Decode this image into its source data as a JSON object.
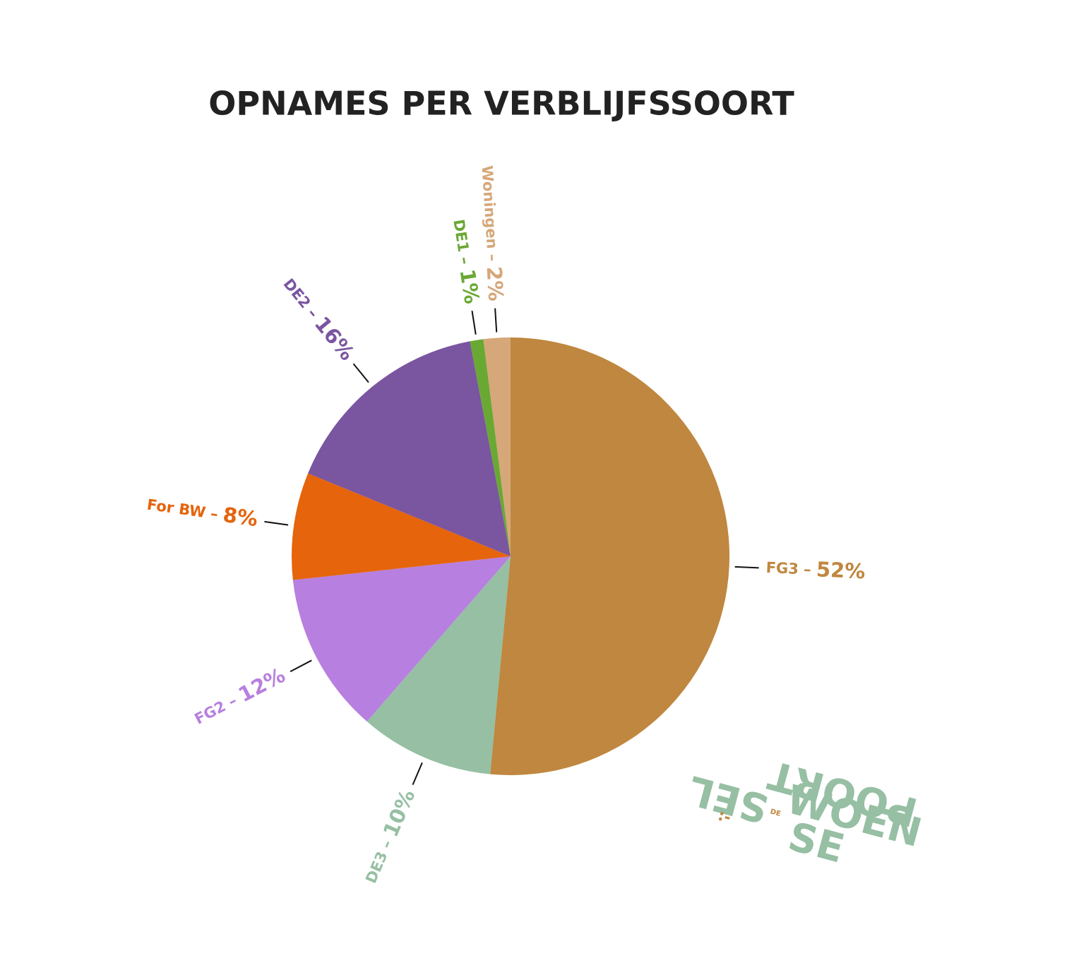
{
  "chart_data": {
    "type": "pie",
    "title": "OPNAMES PER VERBLIJFSSOORT",
    "categories": [
      "FG3",
      "DE3",
      "FG2",
      "For BW",
      "DE2",
      "DE1",
      "Woningen"
    ],
    "values": [
      52,
      10,
      12,
      8,
      16,
      1,
      2
    ],
    "value_labels": [
      "52%",
      "10%",
      "12%",
      "8%",
      "16%",
      "1%",
      "2%"
    ],
    "colors": [
      "#bf873f",
      "#96bfa3",
      "#b77fdf",
      "#e5640c",
      "#7a55a0",
      "#6aa834",
      "#d6a779"
    ],
    "separator": "–"
  },
  "logo": {
    "small": "DE",
    "lines": [
      "WOEN",
      "SE",
      "SEL",
      "POORT"
    ],
    "mark": ":-"
  }
}
